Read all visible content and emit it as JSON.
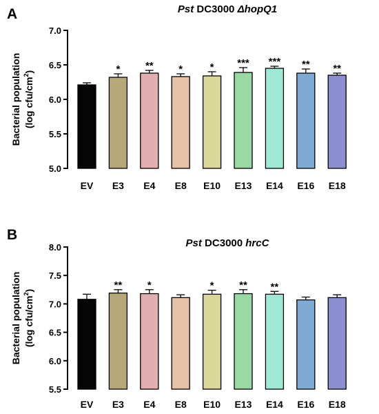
{
  "chart_data": [
    {
      "panel_letter": "A",
      "type": "bar",
      "title_prefix": "Pst",
      "title_middle": " DC3000 ",
      "title_suffix": "ΔhopQ1",
      "ylabel_line1": "Bacterial population",
      "ylabel_line2_main": "(log cfu/cm",
      "ylabel_line2_sup": "2",
      "ylabel_line2_end": ")",
      "ylim": [
        5.0,
        7.0
      ],
      "yticks": [
        "5.0",
        "5.5",
        "6.0",
        "6.5",
        "7.0"
      ],
      "categories": [
        "EV",
        "E3",
        "E4",
        "E8",
        "E10",
        "E13",
        "E14",
        "E16",
        "E18"
      ],
      "values": [
        6.21,
        6.32,
        6.38,
        6.33,
        6.34,
        6.39,
        6.45,
        6.38,
        6.35
      ],
      "errors": [
        0.03,
        0.05,
        0.04,
        0.04,
        0.06,
        0.07,
        0.03,
        0.06,
        0.03
      ],
      "significance": [
        "",
        "*",
        "**",
        "*",
        "*",
        "***",
        "***",
        "**",
        "**"
      ]
    },
    {
      "panel_letter": "B",
      "type": "bar",
      "title_prefix": "Pst",
      "title_middle": " DC3000 ",
      "title_suffix": "hrcC",
      "ylabel_line1": "Bacterial population",
      "ylabel_line2_main": "(log cfu/cm",
      "ylabel_line2_sup": "2",
      "ylabel_line2_end": ")",
      "ylim": [
        5.5,
        8.0
      ],
      "yticks": [
        "5.5",
        "6.0",
        "6.5",
        "7.0",
        "7.5",
        "8.0"
      ],
      "categories": [
        "EV",
        "E3",
        "E4",
        "E8",
        "E10",
        "E13",
        "E14",
        "E16",
        "E18"
      ],
      "values": [
        7.08,
        7.19,
        7.18,
        7.11,
        7.17,
        7.18,
        7.17,
        7.07,
        7.11
      ],
      "errors": [
        0.09,
        0.06,
        0.07,
        0.05,
        0.07,
        0.07,
        0.05,
        0.05,
        0.05
      ],
      "significance": [
        "",
        "**",
        "*",
        "",
        "*",
        "**",
        "**",
        "",
        ""
      ]
    }
  ],
  "bar_colors": [
    "#050505",
    "#b8a877",
    "#e2aeb0",
    "#e6c1aa",
    "#d9d898",
    "#98d9a4",
    "#9fe8d6",
    "#7eaad4",
    "#8b8fd0"
  ]
}
